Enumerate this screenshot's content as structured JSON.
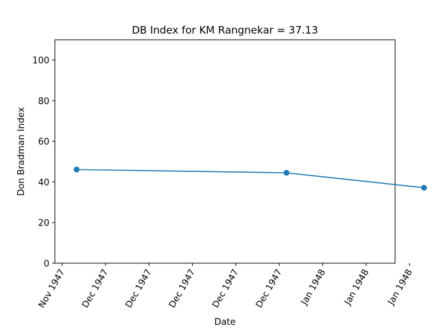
{
  "chart_data": {
    "type": "line",
    "title": "DB Index for KM Rangnekar = 37.13",
    "xlabel": "Date",
    "ylabel": "Don Bradman Index",
    "ylim": [
      0,
      110
    ],
    "yticks": [
      0,
      20,
      40,
      60,
      80,
      100
    ],
    "xlim": [
      "1947-11-27",
      "1948-01-13"
    ],
    "xticks": [
      {
        "date": "1947-11-28",
        "label": "Nov 1947"
      },
      {
        "date": "1947-12-04",
        "label": "Dec 1947"
      },
      {
        "date": "1947-12-10",
        "label": "Dec 1947"
      },
      {
        "date": "1947-12-16",
        "label": "Dec 1947"
      },
      {
        "date": "1947-12-22",
        "label": "Dec 1947"
      },
      {
        "date": "1947-12-28",
        "label": "Dec 1947"
      },
      {
        "date": "1948-01-03",
        "label": "Jan 1948"
      },
      {
        "date": "1948-01-09",
        "label": "Jan 1948"
      },
      {
        "date": "1948-01-15",
        "label": "Jan 1948"
      }
    ],
    "series": [
      {
        "color": "#1f77b4",
        "x": [
          "1947-11-30",
          "1947-12-29",
          "1948-01-17"
        ],
        "y": [
          46.1,
          44.5,
          37.13
        ]
      }
    ],
    "grid": false,
    "legend": "none"
  }
}
